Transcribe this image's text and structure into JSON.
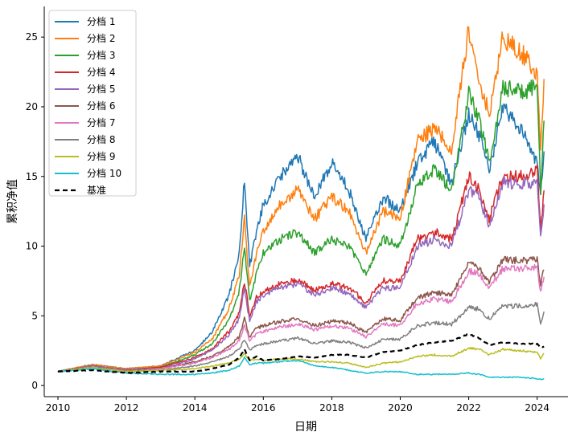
{
  "chart_data": {
    "type": "line",
    "title": "",
    "xlabel": "日期",
    "ylabel": "累积净值",
    "xlim": [
      2009.6,
      2024.9
    ],
    "ylim": [
      -0.8,
      27.2
    ],
    "xticks": [
      2010,
      2012,
      2014,
      2016,
      2018,
      2020,
      2022,
      2024
    ],
    "yticks": [
      0,
      5,
      10,
      15,
      20,
      25
    ],
    "grid": false,
    "legend_position": "top-left",
    "x": [
      2010.0,
      2011.0,
      2012.0,
      2013.0,
      2014.0,
      2014.5,
      2015.0,
      2015.3,
      2015.45,
      2015.6,
      2015.8,
      2016.0,
      2016.5,
      2017.0,
      2017.5,
      2018.0,
      2018.5,
      2019.0,
      2019.5,
      2020.0,
      2020.5,
      2021.0,
      2021.5,
      2022.0,
      2022.3,
      2022.6,
      2023.0,
      2023.5,
      2024.0,
      2024.1,
      2024.2
    ],
    "series": [
      {
        "name": "分档 1",
        "color": "#1f77b4",
        "values": [
          1.0,
          1.5,
          1.2,
          1.4,
          2.5,
          3.8,
          6.5,
          9.5,
          14.8,
          8.5,
          11.0,
          13.0,
          15.0,
          16.5,
          13.5,
          16.0,
          14.0,
          10.5,
          13.5,
          12.5,
          16.0,
          17.5,
          14.5,
          19.5,
          18.0,
          15.5,
          20.0,
          18.5,
          16.0,
          14.0,
          16.8
        ]
      },
      {
        "name": "分档 2",
        "color": "#ff7f0e",
        "values": [
          1.0,
          1.5,
          1.2,
          1.4,
          2.4,
          3.3,
          5.5,
          8.0,
          12.0,
          7.0,
          9.5,
          11.0,
          13.0,
          14.0,
          12.0,
          13.5,
          12.5,
          9.5,
          12.5,
          12.0,
          17.5,
          18.5,
          17.0,
          25.5,
          22.0,
          19.5,
          25.0,
          24.0,
          22.5,
          17.0,
          22.0
        ]
      },
      {
        "name": "分档 3",
        "color": "#2ca02c",
        "values": [
          1.0,
          1.4,
          1.1,
          1.3,
          2.2,
          3.0,
          4.7,
          6.8,
          10.0,
          6.0,
          8.0,
          9.5,
          10.5,
          11.0,
          9.5,
          10.5,
          10.0,
          8.0,
          10.5,
          10.0,
          14.5,
          15.5,
          14.0,
          21.0,
          19.0,
          16.0,
          21.5,
          21.0,
          21.5,
          14.0,
          19.0
        ]
      },
      {
        "name": "分档 4",
        "color": "#d62728",
        "values": [
          1.0,
          1.4,
          1.1,
          1.3,
          2.0,
          2.6,
          3.9,
          5.2,
          7.5,
          5.0,
          6.3,
          6.8,
          7.3,
          7.6,
          6.8,
          7.3,
          7.0,
          6.0,
          7.5,
          7.5,
          10.5,
          11.0,
          10.5,
          15.0,
          14.0,
          12.0,
          15.0,
          15.0,
          15.5,
          11.0,
          14.0
        ]
      },
      {
        "name": "分档 5",
        "color": "#9467bd",
        "values": [
          1.0,
          1.4,
          1.1,
          1.2,
          1.9,
          2.5,
          3.6,
          4.8,
          7.0,
          4.6,
          6.0,
          6.5,
          7.0,
          7.3,
          6.5,
          7.0,
          6.6,
          5.6,
          7.0,
          7.0,
          10.0,
          10.5,
          10.0,
          14.0,
          13.5,
          11.5,
          14.5,
          14.5,
          14.5,
          10.5,
          13.0
        ]
      },
      {
        "name": "分档 6",
        "color": "#8c564b",
        "values": [
          1.0,
          1.3,
          1.0,
          1.2,
          1.7,
          2.1,
          2.8,
          3.5,
          4.8,
          3.5,
          4.1,
          4.3,
          4.6,
          4.8,
          4.3,
          4.6,
          4.5,
          3.8,
          4.8,
          4.7,
          6.3,
          6.7,
          6.5,
          8.8,
          8.5,
          7.4,
          9.0,
          9.0,
          9.0,
          7.2,
          8.3
        ]
      },
      {
        "name": "分档 7",
        "color": "#e377c2",
        "values": [
          1.0,
          1.3,
          1.0,
          1.2,
          1.6,
          2.0,
          2.6,
          3.2,
          4.3,
          3.2,
          3.7,
          3.9,
          4.2,
          4.4,
          4.0,
          4.3,
          4.1,
          3.5,
          4.4,
          4.3,
          5.9,
          6.2,
          6.0,
          8.2,
          8.0,
          7.0,
          8.4,
          8.4,
          8.5,
          6.8,
          7.8
        ]
      },
      {
        "name": "分档 8",
        "color": "#7f7f7f",
        "values": [
          1.0,
          1.3,
          1.0,
          1.1,
          1.4,
          1.7,
          2.1,
          2.6,
          3.3,
          2.5,
          2.9,
          3.0,
          3.2,
          3.4,
          3.0,
          3.2,
          3.1,
          2.7,
          3.3,
          3.3,
          4.3,
          4.5,
          4.4,
          5.6,
          5.5,
          4.8,
          5.7,
          5.7,
          5.8,
          4.5,
          5.3
        ]
      },
      {
        "name": "分档 9",
        "color": "#bcbd22",
        "values": [
          1.0,
          1.3,
          1.0,
          1.1,
          1.2,
          1.4,
          1.6,
          1.9,
          2.3,
          1.8,
          1.9,
          1.8,
          1.9,
          1.9,
          1.7,
          1.7,
          1.6,
          1.3,
          1.6,
          1.7,
          2.1,
          2.2,
          2.1,
          2.7,
          2.6,
          2.2,
          2.6,
          2.5,
          2.4,
          1.9,
          2.3
        ]
      },
      {
        "name": "分档 10",
        "color": "#17becf",
        "values": [
          1.0,
          1.2,
          0.9,
          0.8,
          0.8,
          0.9,
          1.1,
          1.4,
          2.0,
          1.5,
          1.6,
          1.6,
          1.7,
          1.8,
          1.4,
          1.3,
          1.1,
          0.9,
          1.0,
          1.0,
          0.8,
          0.8,
          0.8,
          0.9,
          0.8,
          0.6,
          0.6,
          0.6,
          0.5,
          0.45,
          0.5
        ]
      },
      {
        "name": "基准",
        "color": "#000000",
        "dashed": true,
        "values": [
          1.0,
          1.1,
          0.9,
          1.0,
          1.0,
          1.2,
          1.5,
          2.0,
          2.6,
          1.8,
          2.1,
          1.8,
          1.9,
          2.1,
          2.0,
          2.2,
          2.2,
          2.0,
          2.4,
          2.5,
          2.9,
          3.1,
          3.2,
          3.7,
          3.4,
          2.9,
          3.1,
          3.0,
          3.0,
          2.7,
          2.8
        ]
      }
    ]
  }
}
